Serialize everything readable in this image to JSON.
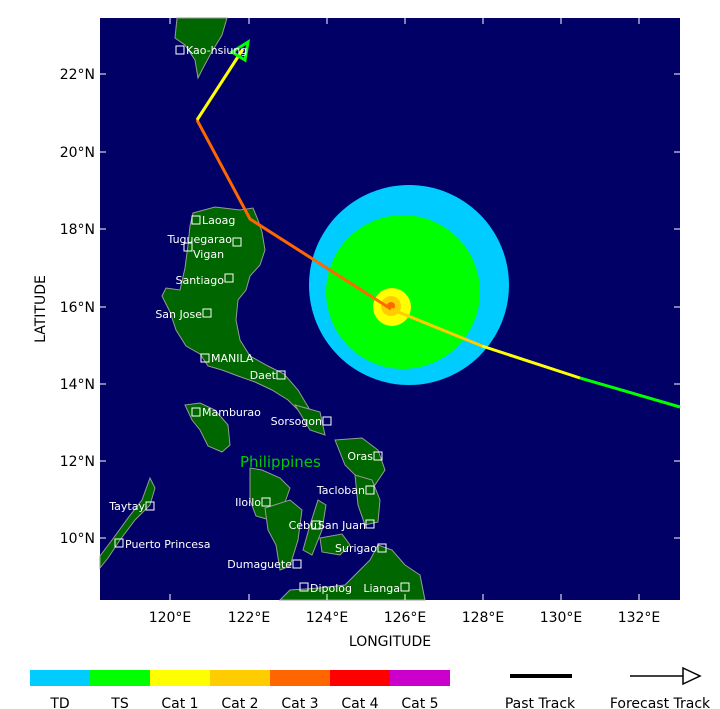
{
  "map": {
    "xlabel": "LONGITUDE",
    "ylabel": "LATITUDE",
    "x_ticks": [
      "120°E",
      "122°E",
      "124°E",
      "126°E",
      "128°E",
      "130°E",
      "132°E"
    ],
    "y_ticks": [
      "22°N",
      "20°N",
      "18°N",
      "16°N",
      "14°N",
      "12°N",
      "10°N"
    ],
    "country_label": "Philippines",
    "colors": {
      "ocean": "#000066",
      "land": "#006600",
      "coast": "#999999",
      "country_label": "#00cc00"
    },
    "cities": [
      "Kao-hsiung",
      "Laoag",
      "Tuguegarao",
      "Vigan",
      "Santiago",
      "San Jose",
      "MANILA",
      "Daet",
      "Mamburao",
      "Sorsogon",
      "Oras",
      "Tacloban",
      "Iloilo",
      "Taytay",
      "Cebu",
      "San Juan",
      "Puerto Princesa",
      "Surigao",
      "Dumaguete",
      "Dipolog",
      "Lianga"
    ]
  },
  "legend": {
    "categories": [
      {
        "label": "TD",
        "color": "#00ccff"
      },
      {
        "label": "TS",
        "color": "#00ff00"
      },
      {
        "label": "Cat 1",
        "color": "#ffff00"
      },
      {
        "label": "Cat 2",
        "color": "#ffcc00"
      },
      {
        "label": "Cat 3",
        "color": "#ff6600"
      },
      {
        "label": "Cat 4",
        "color": "#ff0000"
      },
      {
        "label": "Cat 5",
        "color": "#cc00cc"
      }
    ],
    "past_track": "Past Track",
    "forecast_track": "Forecast Track"
  }
}
